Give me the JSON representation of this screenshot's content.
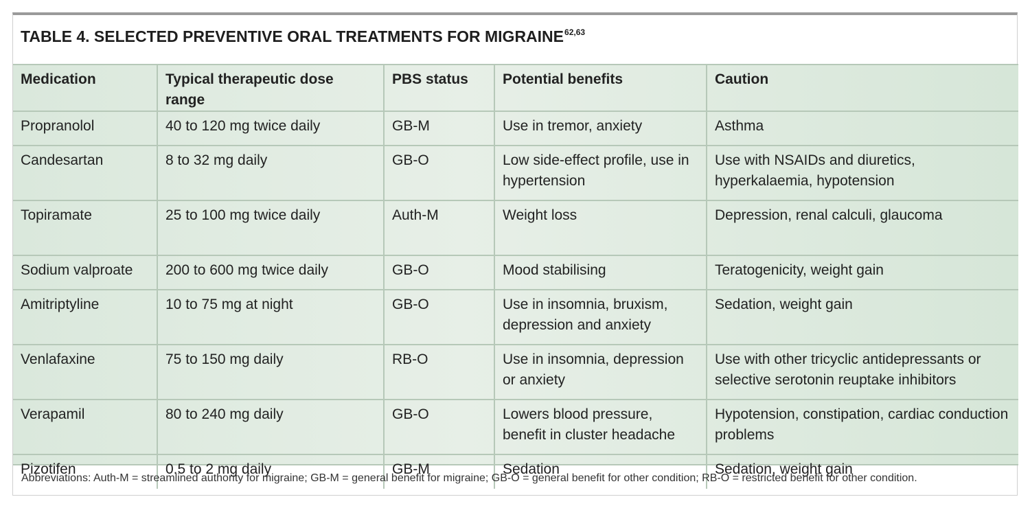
{
  "table": {
    "number": "TABLE 4.",
    "title": "SELECTED PREVENTIVE ORAL TREATMENTS FOR MIGRAINE",
    "refs": "62,63",
    "headers": {
      "medication": "Medication",
      "dose": "Typical therapeutic dose range",
      "pbs": "PBS status",
      "benefits": "Potential benefits",
      "caution": "Caution"
    },
    "rows": [
      {
        "medication": "Propranolol",
        "dose": "40 to 120 mg twice daily",
        "pbs": "GB-M",
        "benefits": "Use in tremor, anxiety",
        "caution": "Asthma"
      },
      {
        "medication": "Candesartan",
        "dose": "8 to 32 mg daily",
        "pbs": "GB-O",
        "benefits": "Low side-effect profile, use in hypertension",
        "caution": "Use with NSAIDs and diuretics, hyperkalaemia, hypotension"
      },
      {
        "medication": "Topiramate",
        "dose": "25 to 100 mg twice daily",
        "pbs": "Auth-M",
        "benefits": "Weight loss",
        "caution": "Depression, renal calculi, glaucoma"
      },
      {
        "medication": "Sodium valproate",
        "dose": "200 to 600 mg twice daily",
        "pbs": "GB-O",
        "benefits": "Mood stabilising",
        "caution": "Teratogenicity, weight gain"
      },
      {
        "medication": "Amitriptyline",
        "dose": "10 to 75 mg at night",
        "pbs": "GB-O",
        "benefits": "Use in insomnia, bruxism, depression and anxiety",
        "caution": "Sedation, weight gain"
      },
      {
        "medication": "Venlafaxine",
        "dose": "75 to 150 mg daily",
        "pbs": "RB-O",
        "benefits": "Use in insomnia, depression or anxiety",
        "caution": "Use with other tricyclic antidepressants or selective serotonin reuptake inhibitors"
      },
      {
        "medication": "Verapamil",
        "dose": "80 to 240 mg daily",
        "pbs": "GB-O",
        "benefits": "Lowers blood pressure, benefit in cluster headache",
        "caution": "Hypotension, constipation, cardiac conduction problems"
      },
      {
        "medication": "Pizotifen",
        "dose": "0.5 to 2 mg daily",
        "pbs": "GB-M",
        "benefits": "Sedation",
        "caution": "Sedation, weight gain"
      }
    ],
    "abbreviations": "Abbreviations: Auth-M = streamlined authority for migraine; GB-M = general benefit for migraine; GB-O = general benefit for other condition; RB-O = restricted benefit for other condition."
  }
}
